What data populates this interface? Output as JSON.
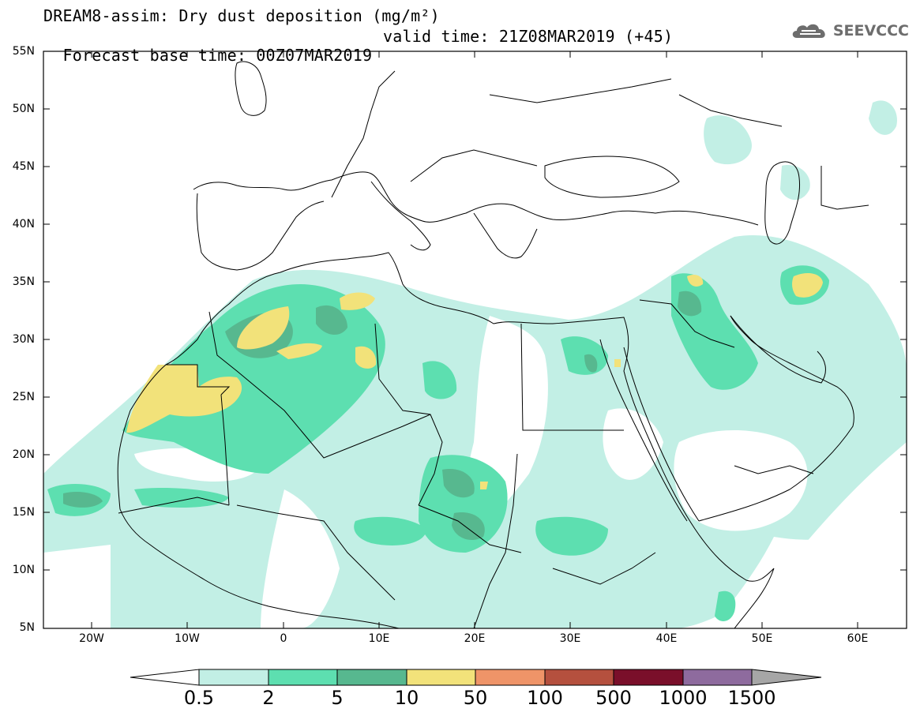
{
  "title": {
    "line1": "DREAM8-assim: Dry dust deposition (mg/m²)",
    "line2_left": "Forecast base time: 00Z07MAR2019",
    "line2_right": "valid time: 21Z08MAR2019 (+45)"
  },
  "logo": {
    "text": "SEEVCCC",
    "icon": "cloud-icon"
  },
  "map": {
    "projection": "lat-lon",
    "lon_range": [
      -25,
      65
    ],
    "lat_range": [
      5,
      55
    ],
    "lat_labels": [
      "55N",
      "50N",
      "45N",
      "40N",
      "35N",
      "30N",
      "25N",
      "20N",
      "15N",
      "10N",
      "5N"
    ],
    "lon_labels": [
      "20W",
      "10W",
      "0",
      "10E",
      "20E",
      "30E",
      "40E",
      "50E",
      "60E"
    ]
  },
  "colorbar": {
    "labels": [
      "0.5",
      "2",
      "5",
      "10",
      "50",
      "100",
      "500",
      "1000",
      "1500"
    ],
    "colors": [
      "#ffffff",
      "#c2efe5",
      "#5ddfb0",
      "#57b88f",
      "#f2e27a",
      "#ef9468",
      "#b5503e",
      "#7a0f2a",
      "#8e6b9e",
      "#a6a6a6"
    ]
  }
}
